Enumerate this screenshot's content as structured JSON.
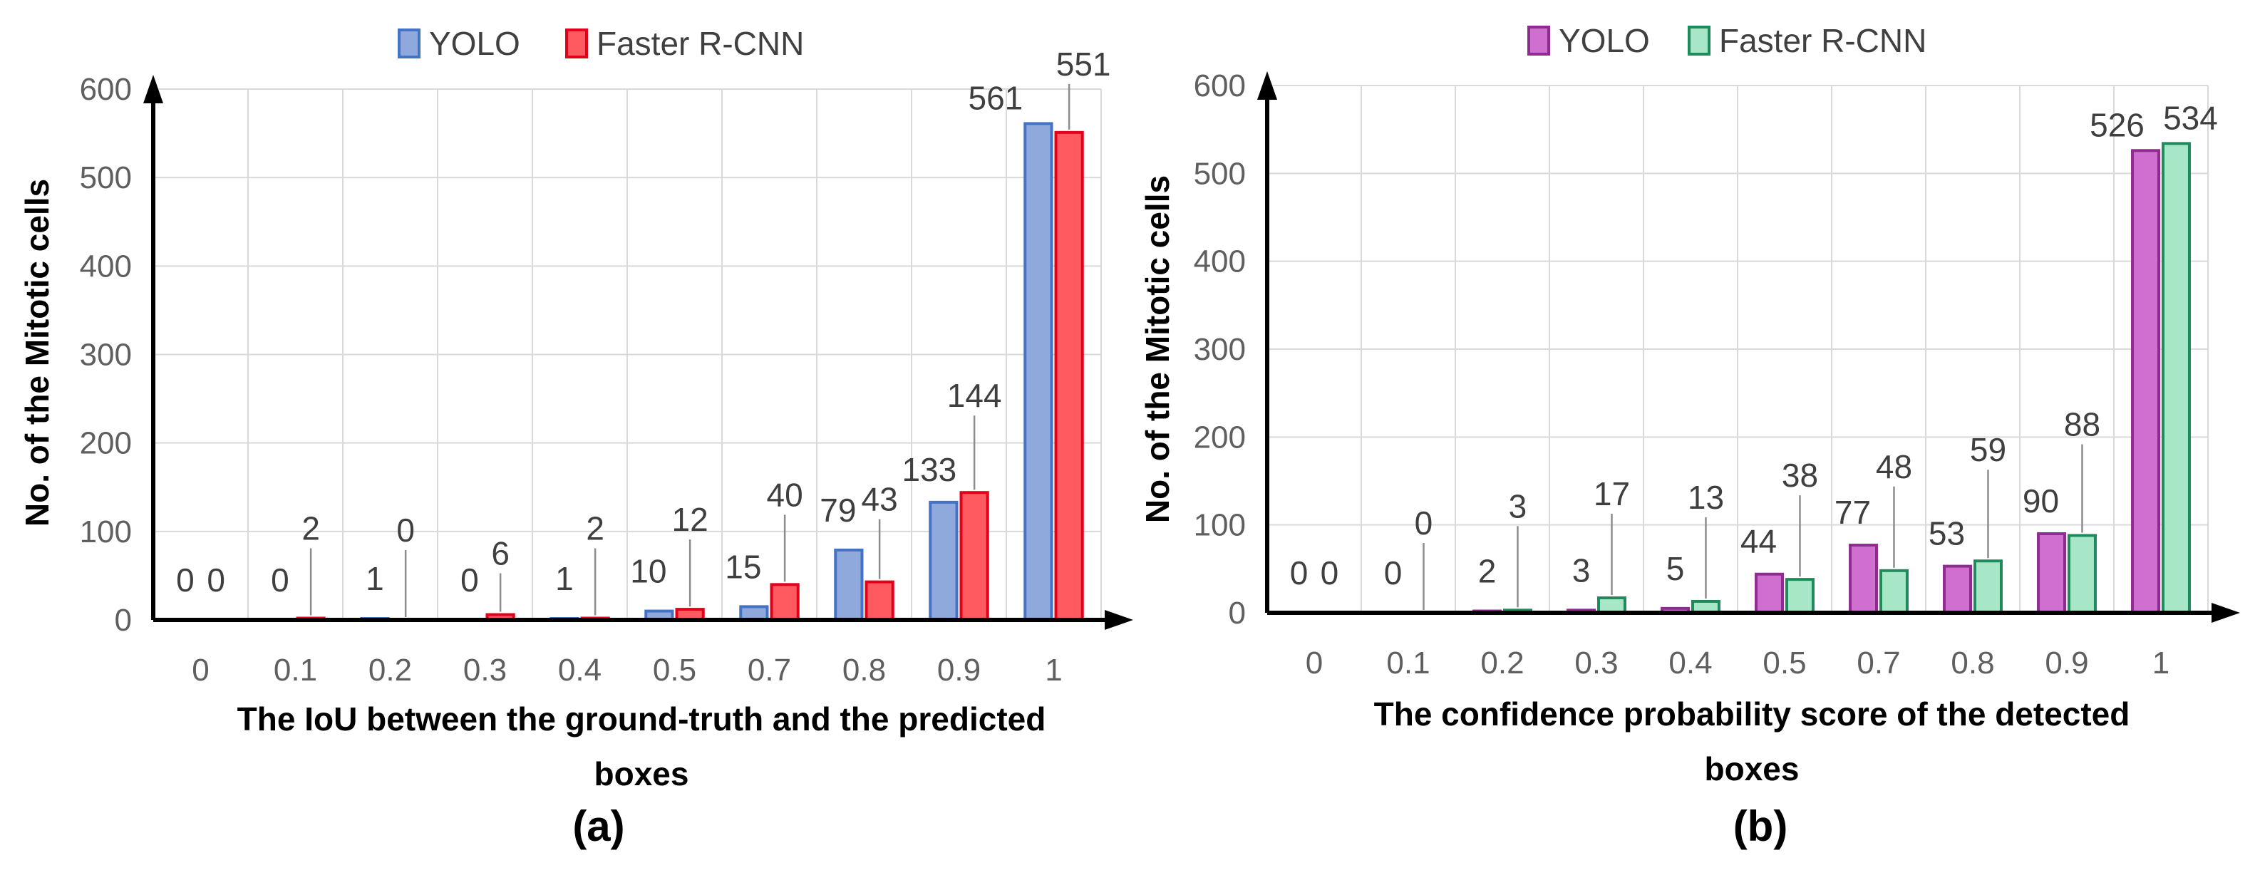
{
  "chart_data": [
    {
      "type": "bar",
      "categories": [
        "0",
        "0.1",
        "0.2",
        "0.3",
        "0.4",
        "0.5",
        "0.7",
        "0.8",
        "0.9",
        "1"
      ],
      "series": [
        {
          "name": "YOLO",
          "values": [
            0,
            0,
            1,
            0,
            1,
            10,
            15,
            79,
            133,
            561
          ],
          "color": "#4472c4",
          "fill": "#8fa9dc"
        },
        {
          "name": "Faster R-CNN",
          "values": [
            0,
            2,
            0,
            6,
            2,
            12,
            40,
            43,
            144,
            551
          ],
          "color": "#e3001b",
          "fill": "#ff5a5f"
        }
      ],
      "xlabel": "The IoU between the ground-truth and the predicted boxes",
      "ylabel": "No. of the Mitotic cells",
      "ylim": [
        0,
        600
      ],
      "yticks": [
        "0",
        "100",
        "200",
        "300",
        "400",
        "500",
        "600"
      ],
      "panel_label": "(a)",
      "legend_position": "top-center",
      "grid": true
    },
    {
      "type": "bar",
      "categories": [
        "0",
        "0.1",
        "0.2",
        "0.3",
        "0.4",
        "0.5",
        "0.7",
        "0.8",
        "0.9",
        "1"
      ],
      "series": [
        {
          "name": "YOLO",
          "values": [
            0,
            0,
            2,
            3,
            5,
            44,
            77,
            53,
            90,
            526
          ],
          "color": "#8e2d8e",
          "fill": "#cf6fcf"
        },
        {
          "name": "Faster R-CNN",
          "values": [
            0,
            0,
            3,
            17,
            13,
            38,
            48,
            59,
            88,
            534
          ],
          "color": "#1f8a5a",
          "fill": "#a8e6c8"
        }
      ],
      "xlabel": "The confidence probability score of the detected boxes",
      "ylabel": "No. of the Mitotic cells",
      "ylim": [
        0,
        600
      ],
      "yticks": [
        "0",
        "100",
        "200",
        "300",
        "400",
        "500",
        "600"
      ],
      "panel_label": "(b)",
      "legend_position": "top-center",
      "grid": true
    }
  ]
}
